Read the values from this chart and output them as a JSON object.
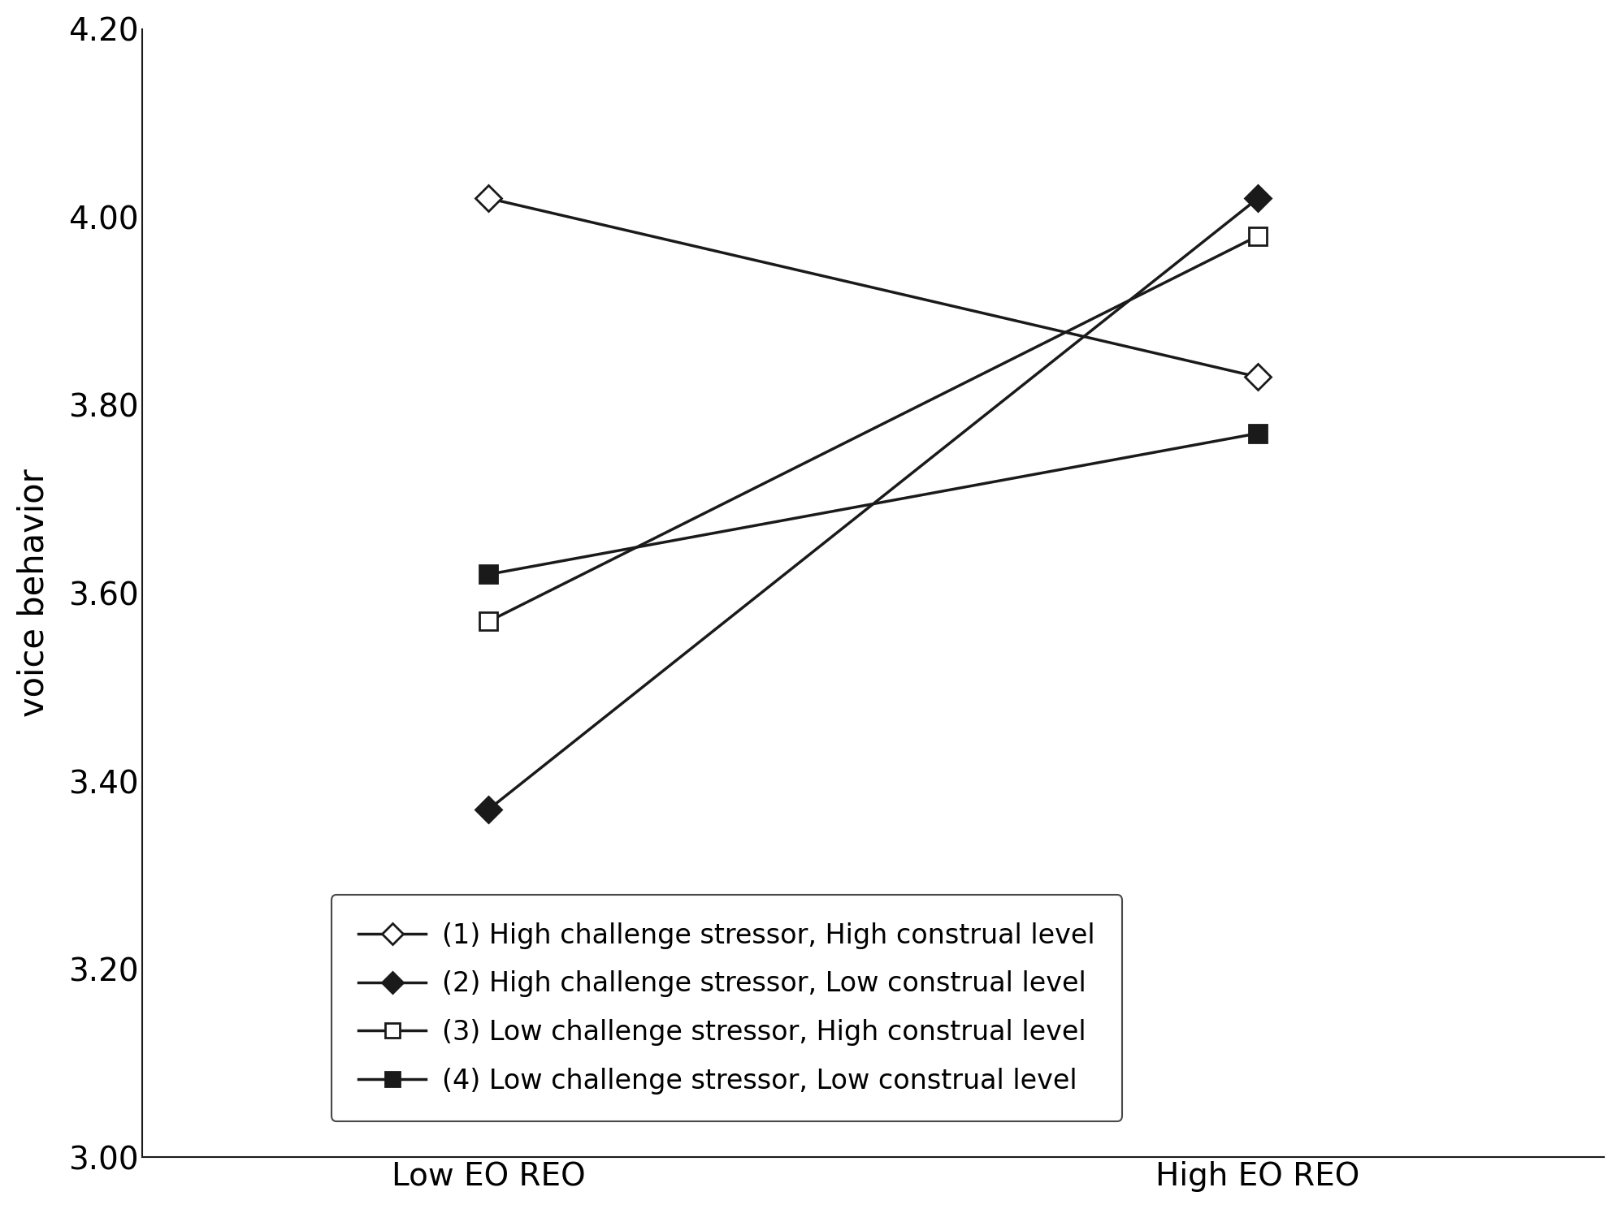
{
  "x_labels": [
    "Low EO REO",
    "High EO REO"
  ],
  "x_positions": [
    0,
    1
  ],
  "series": [
    {
      "label": "(1) High challenge stressor, High construal level",
      "values": [
        4.02,
        3.83
      ],
      "marker": "D",
      "marker_filled": false,
      "color": "#1a1a1a"
    },
    {
      "label": "(2) High challenge stressor, Low construal level",
      "values": [
        3.37,
        4.02
      ],
      "marker": "D",
      "marker_filled": true,
      "color": "#1a1a1a"
    },
    {
      "label": "(3) Low challenge stressor, High construal level",
      "values": [
        3.57,
        3.98
      ],
      "marker": "s",
      "marker_filled": false,
      "color": "#1a1a1a"
    },
    {
      "label": "(4) Low challenge stressor, Low construal level",
      "values": [
        3.62,
        3.77
      ],
      "marker": "s",
      "marker_filled": true,
      "color": "#1a1a1a"
    }
  ],
  "ylabel": "voice behavior",
  "ylim": [
    3.0,
    4.2
  ],
  "yticks": [
    3.0,
    3.2,
    3.4,
    3.6,
    3.8,
    4.0,
    4.2
  ],
  "ytick_labels": [
    "3.00",
    "3.20",
    "3.40",
    "3.60",
    "3.80",
    "4.00",
    "4.20"
  ],
  "background_color": "#ffffff",
  "line_color": "#1a1a1a",
  "font_size_ticks": 28,
  "font_size_ylabel": 30,
  "font_size_legend": 24,
  "marker_size": 16,
  "line_width": 2.5,
  "figwidth": 19.95,
  "figheight": 14.89,
  "dpi": 100
}
